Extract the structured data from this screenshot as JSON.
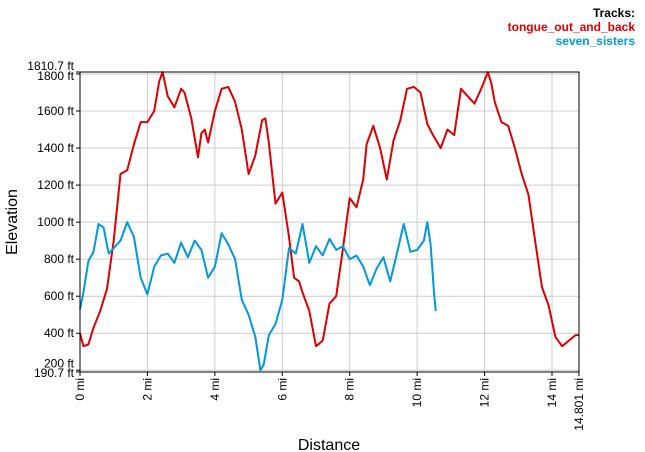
{
  "legend": {
    "title": "Tracks:",
    "entries": [
      {
        "name": "tongue_out_and_back",
        "color": "#dd0000"
      },
      {
        "name": "seven_sisters",
        "color": "#0099dd"
      }
    ]
  },
  "chart_data": {
    "type": "line",
    "xlabel": "Distance",
    "ylabel": "Elevation",
    "x_unit": "mi",
    "y_unit": "ft",
    "xlim": [
      0,
      14.801
    ],
    "ylim": [
      190.7,
      1810.7
    ],
    "x_ticks": [
      "0 mi",
      "2 mi",
      "4 mi",
      "6 mi",
      "8 mi",
      "10 mi",
      "12 mi",
      "14 mi",
      "14.801 mi"
    ],
    "x_tick_values": [
      0,
      2,
      4,
      6,
      8,
      10,
      12,
      14,
      14.801
    ],
    "y_ticks": [
      "190.7 ft",
      "200 ft",
      "400 ft",
      "600 ft",
      "800 ft",
      "1000 ft",
      "1200 ft",
      "1400 ft",
      "1600 ft",
      "1800 ft",
      "1810.7 ft"
    ],
    "y_tick_values": [
      190.7,
      200,
      400,
      600,
      800,
      1000,
      1200,
      1400,
      1600,
      1800,
      1810.7
    ],
    "grid": true,
    "legend_position": "top-right",
    "series": [
      {
        "name": "tongue_out_and_back",
        "color": "#dd0000",
        "x": [
          0,
          0.1,
          0.25,
          0.4,
          0.6,
          0.8,
          1.0,
          1.2,
          1.4,
          1.6,
          1.8,
          2.0,
          2.2,
          2.35,
          2.45,
          2.6,
          2.8,
          3.0,
          3.1,
          3.3,
          3.5,
          3.6,
          3.7,
          3.8,
          4.0,
          4.2,
          4.4,
          4.6,
          4.8,
          5.0,
          5.2,
          5.4,
          5.5,
          5.6,
          5.8,
          6.0,
          6.2,
          6.35,
          6.5,
          6.6,
          6.8,
          7.0,
          7.2,
          7.4,
          7.6,
          7.8,
          8.0,
          8.2,
          8.4,
          8.5,
          8.7,
          8.9,
          9.1,
          9.3,
          9.5,
          9.7,
          9.9,
          10.1,
          10.3,
          10.5,
          10.7,
          10.9,
          11.1,
          11.3,
          11.5,
          11.7,
          11.9,
          12.1,
          12.2,
          12.3,
          12.5,
          12.7,
          12.9,
          13.1,
          13.3,
          13.5,
          13.7,
          13.9,
          14.1,
          14.3,
          14.5,
          14.7,
          14.801
        ],
        "y": [
          400,
          330,
          340,
          430,
          520,
          640,
          900,
          1260,
          1280,
          1420,
          1540,
          1540,
          1600,
          1760,
          1810,
          1680,
          1620,
          1720,
          1700,
          1560,
          1350,
          1480,
          1500,
          1430,
          1600,
          1720,
          1730,
          1650,
          1500,
          1260,
          1360,
          1550,
          1560,
          1430,
          1100,
          1160,
          920,
          700,
          680,
          620,
          520,
          330,
          360,
          560,
          600,
          860,
          1130,
          1080,
          1230,
          1420,
          1520,
          1400,
          1230,
          1440,
          1550,
          1720,
          1730,
          1700,
          1530,
          1460,
          1400,
          1500,
          1470,
          1720,
          1680,
          1640,
          1720,
          1810,
          1750,
          1650,
          1540,
          1520,
          1400,
          1260,
          1150,
          900,
          650,
          550,
          380,
          330,
          360,
          390,
          390
        ]
      },
      {
        "name": "seven_sisters",
        "color": "#0099dd",
        "x": [
          0,
          0.1,
          0.25,
          0.4,
          0.55,
          0.7,
          0.85,
          1.0,
          1.2,
          1.4,
          1.6,
          1.8,
          2.0,
          2.2,
          2.4,
          2.6,
          2.8,
          3.0,
          3.2,
          3.4,
          3.6,
          3.8,
          4.0,
          4.2,
          4.4,
          4.6,
          4.8,
          5.0,
          5.2,
          5.35,
          5.45,
          5.6,
          5.8,
          6.0,
          6.2,
          6.4,
          6.6,
          6.8,
          7.0,
          7.2,
          7.4,
          7.6,
          7.8,
          8.0,
          8.2,
          8.4,
          8.6,
          8.8,
          9.0,
          9.2,
          9.4,
          9.6,
          9.8,
          10.0,
          10.2,
          10.3,
          10.4,
          10.5,
          10.55
        ],
        "y": [
          530,
          620,
          790,
          840,
          990,
          970,
          830,
          860,
          900,
          1000,
          920,
          700,
          610,
          760,
          820,
          830,
          780,
          890,
          810,
          900,
          850,
          700,
          760,
          940,
          880,
          800,
          580,
          500,
          380,
          200,
          230,
          390,
          450,
          580,
          860,
          830,
          990,
          780,
          870,
          820,
          910,
          850,
          870,
          800,
          820,
          760,
          660,
          750,
          810,
          680,
          830,
          990,
          840,
          850,
          900,
          1000,
          880,
          620,
          520
        ]
      }
    ]
  }
}
